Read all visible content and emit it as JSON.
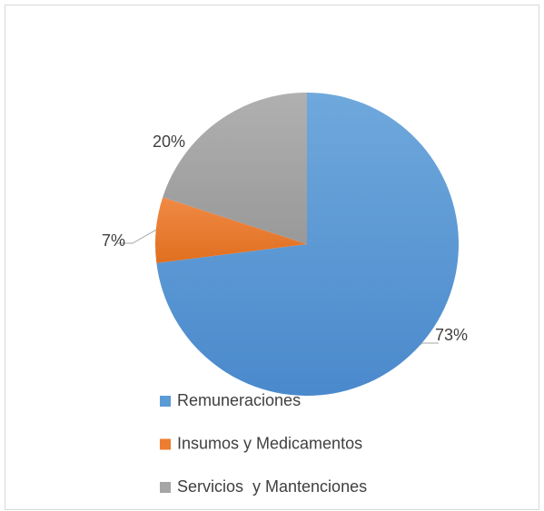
{
  "chart_data": {
    "type": "pie",
    "categories": [
      "Remuneraciones",
      "Insumos y Medicamentos",
      "Servicios  y Mantenciones"
    ],
    "values": [
      73,
      7,
      20
    ],
    "value_labels": [
      "73%",
      "7%",
      "20%"
    ],
    "colors": [
      "#5b9bd5",
      "#ed7d31",
      "#a5a5a5"
    ],
    "legend": "bottom"
  }
}
